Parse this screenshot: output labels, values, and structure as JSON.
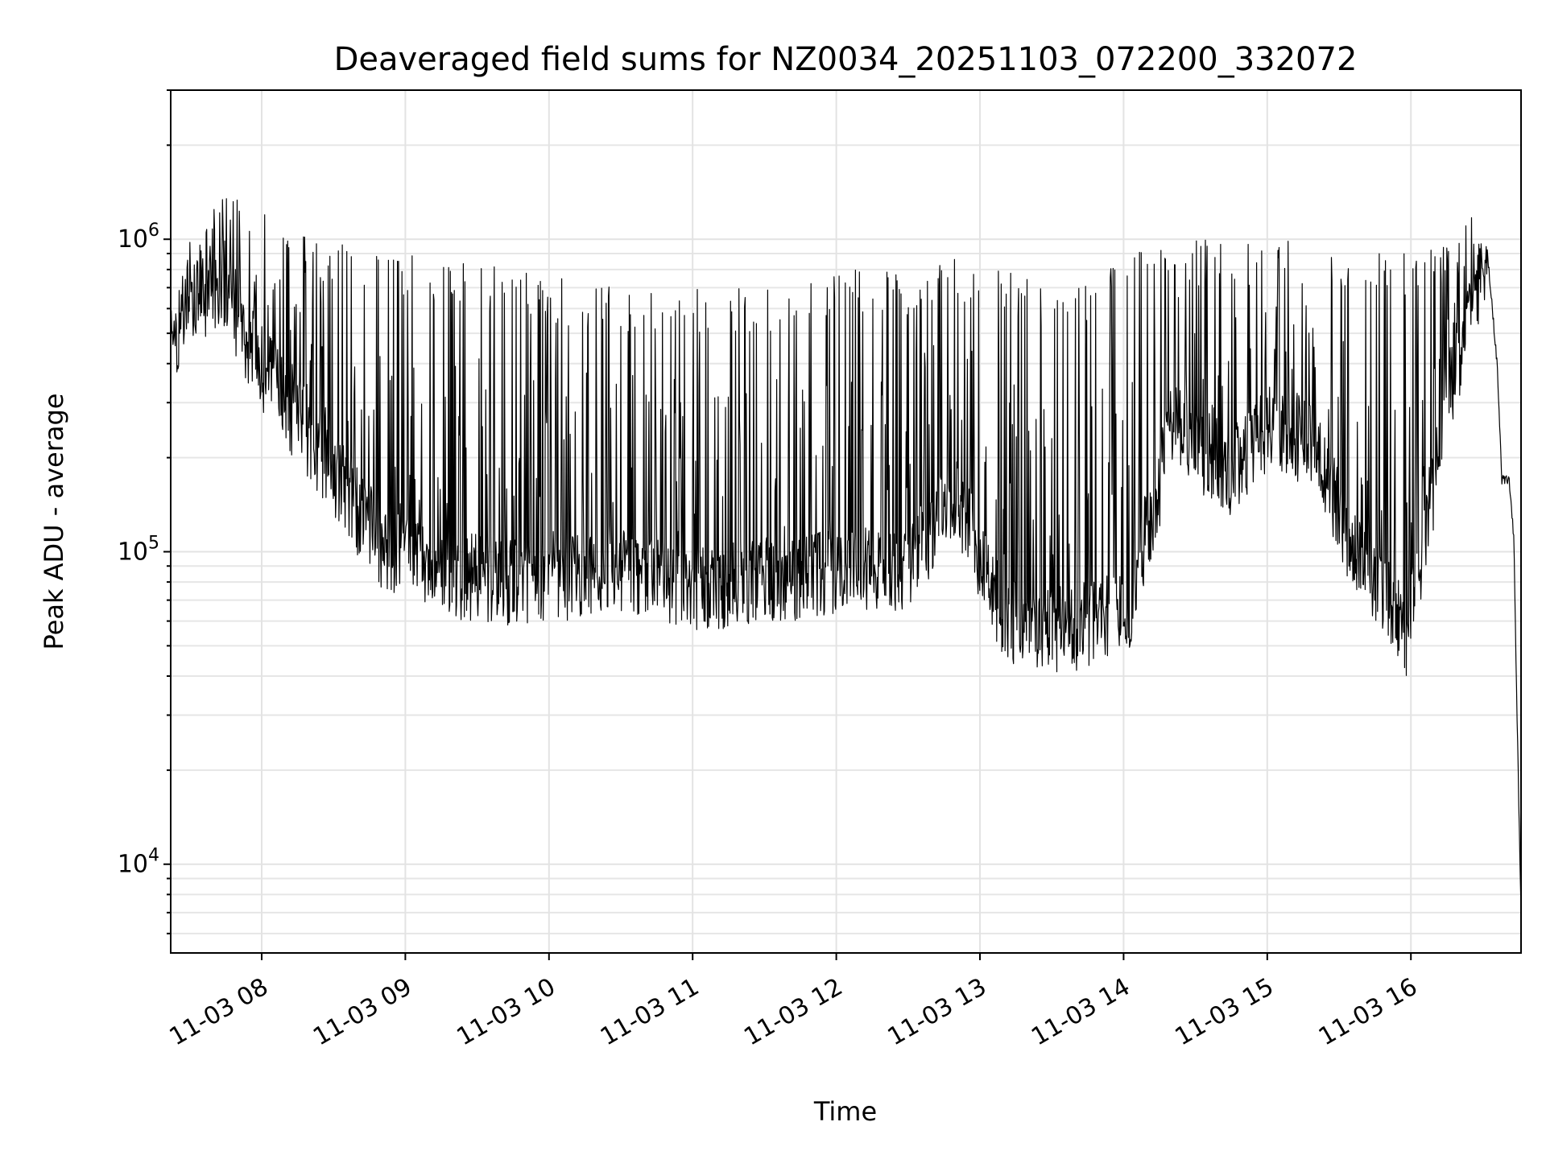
{
  "chart_data": {
    "type": "line",
    "title": "Deaveraged field sums for NZ0034_20251103_072200_332072",
    "xlabel": "Time",
    "ylabel": "Peak ADU - average",
    "yscale": "log",
    "x_type": "datetime",
    "xlim": [
      "2025-11-03T07:22:00",
      "2025-11-03T16:46:00"
    ],
    "ylim": [
      5200,
      3000000
    ],
    "x_ticks": [
      "11-03 08",
      "11-03 09",
      "11-03 10",
      "11-03 11",
      "11-03 12",
      "11-03 13",
      "11-03 14",
      "11-03 15",
      "11-03 16"
    ],
    "y_ticks": [
      {
        "base": "10",
        "exp": "4",
        "value": 10000
      },
      {
        "base": "10",
        "exp": "5",
        "value": 100000
      },
      {
        "base": "10",
        "exp": "6",
        "value": 1000000
      }
    ],
    "grid": true,
    "line_color": "#000000",
    "series": [
      {
        "name": "",
        "style": "high-frequency noisy trace; baseline and spike envelope per segment",
        "points": [
          {
            "x": "2025-11-03T07:22:00",
            "baseline": 450000,
            "spike": 600000
          },
          {
            "x": "2025-11-03T07:30:00",
            "baseline": 650000,
            "spike": 1000000
          },
          {
            "x": "2025-11-03T07:45:00",
            "baseline": 700000,
            "spike": 1500000
          },
          {
            "x": "2025-11-03T07:55:00",
            "baseline": 450000,
            "spike": 1300000
          },
          {
            "x": "2025-11-03T08:10:00",
            "baseline": 300000,
            "spike": 1100000
          },
          {
            "x": "2025-11-03T08:30:00",
            "baseline": 180000,
            "spike": 1000000
          },
          {
            "x": "2025-11-03T08:50:00",
            "baseline": 100000,
            "spike": 900000
          },
          {
            "x": "2025-11-03T09:15:00",
            "baseline": 85000,
            "spike": 900000
          },
          {
            "x": "2025-11-03T09:45:00",
            "baseline": 80000,
            "spike": 800000
          },
          {
            "x": "2025-11-03T10:30:00",
            "baseline": 85000,
            "spike": 700000
          },
          {
            "x": "2025-11-03T11:00:00",
            "baseline": 75000,
            "spike": 700000
          },
          {
            "x": "2025-11-03T11:30:00",
            "baseline": 80000,
            "spike": 700000
          },
          {
            "x": "2025-11-03T12:00:00",
            "baseline": 85000,
            "spike": 800000
          },
          {
            "x": "2025-11-03T12:30:00",
            "baseline": 90000,
            "spike": 800000
          },
          {
            "x": "2025-11-03T12:50:00",
            "baseline": 150000,
            "spike": 900000
          },
          {
            "x": "2025-11-03T13:10:00",
            "baseline": 60000,
            "spike": 800000
          },
          {
            "x": "2025-11-03T13:30:00",
            "baseline": 55000,
            "spike": 700000
          },
          {
            "x": "2025-11-03T13:50:00",
            "baseline": 60000,
            "spike": 800000
          },
          {
            "x": "2025-11-03T14:05:00",
            "baseline": 70000,
            "spike": 900000
          },
          {
            "x": "2025-11-03T14:20:00",
            "baseline": 250000,
            "spike": 1000000
          },
          {
            "x": "2025-11-03T14:45:00",
            "baseline": 180000,
            "spike": 1000000
          },
          {
            "x": "2025-11-03T15:00:00",
            "baseline": 250000,
            "spike": 1000000
          },
          {
            "x": "2025-11-03T15:20:00",
            "baseline": 220000,
            "spike": 1000000
          },
          {
            "x": "2025-11-03T15:35:00",
            "baseline": 100000,
            "spike": 900000
          },
          {
            "x": "2025-11-03T15:50:00",
            "baseline": 75000,
            "spike": 900000
          },
          {
            "x": "2025-11-03T15:58:00",
            "baseline": 50000,
            "spike": 900000
          },
          {
            "x": "2025-11-03T16:05:00",
            "baseline": 100000,
            "spike": 900000
          },
          {
            "x": "2025-11-03T16:15:00",
            "baseline": 300000,
            "spike": 1000000
          },
          {
            "x": "2025-11-03T16:25:00",
            "baseline": 600000,
            "spike": 1200000
          },
          {
            "x": "2025-11-03T16:32:00",
            "baseline": 900000,
            "spike": 1000000
          },
          {
            "x": "2025-11-03T16:36:00",
            "baseline": 400000,
            "spike": 400000
          },
          {
            "x": "2025-11-03T16:38:00",
            "baseline": 170000,
            "spike": 190000
          },
          {
            "x": "2025-11-03T16:41:00",
            "baseline": 170000,
            "spike": 190000
          },
          {
            "x": "2025-11-03T16:43:00",
            "baseline": 110000,
            "spike": 110000
          },
          {
            "x": "2025-11-03T16:44:00",
            "baseline": 40000,
            "spike": 40000
          },
          {
            "x": "2025-11-03T16:46:00",
            "baseline": 7000,
            "spike": 7000
          }
        ]
      }
    ]
  }
}
